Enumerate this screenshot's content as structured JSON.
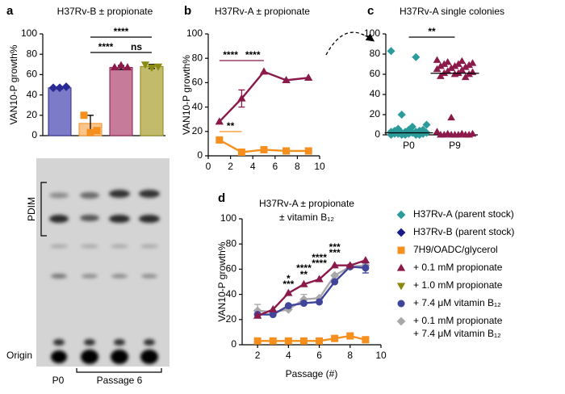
{
  "chart_data": [
    {
      "type": "bar",
      "label": "a",
      "title": "H37Rv-B ± propionate",
      "ylabel": "VAN10-P growth%",
      "ylim": [
        0,
        100
      ],
      "yticks": [
        0,
        20,
        40,
        60,
        80,
        100
      ],
      "values": [
        47,
        12,
        67,
        68
      ],
      "errors": [
        1,
        8,
        2,
        2
      ],
      "colors": [
        "#7b7bc8",
        "#f9c58c",
        "#c77b9a",
        "#c2bb6b"
      ],
      "points": [
        [
          47,
          47,
          48
        ],
        [
          20,
          3,
          5
        ],
        [
          67,
          69,
          67
        ],
        [
          70,
          67,
          68
        ]
      ],
      "point_colors": [
        "#2a2a96",
        "#f5901e",
        "#8b1a4a",
        "#8a8a10"
      ],
      "markers": [
        "diamond",
        "square",
        "triangle",
        "triangle-down"
      ],
      "annotations": [
        {
          "from": 1,
          "to": 3,
          "text": "****"
        },
        {
          "from": 1,
          "to": 2,
          "text": "****"
        },
        {
          "from": 2,
          "to": 3,
          "text": "ns"
        }
      ]
    },
    {
      "type": "line",
      "label": "b",
      "title": "H37Rv-A ± propionate",
      "ylabel": "VAN10-P growth%",
      "xlim": [
        0,
        10
      ],
      "xticks": [
        0,
        2,
        4,
        6,
        8,
        10
      ],
      "ylim": [
        0,
        100
      ],
      "yticks": [
        0,
        20,
        40,
        60,
        80,
        100
      ],
      "x": [
        1,
        3,
        5,
        7,
        9
      ],
      "series": [
        {
          "color": "#8b1a4a",
          "marker": "triangle",
          "values": [
            28,
            47,
            69,
            62,
            64
          ],
          "errors": [
            null,
            7,
            null,
            null,
            null
          ]
        },
        {
          "color": "#f5901e",
          "marker": "square",
          "values": [
            13,
            3,
            5,
            4,
            4
          ],
          "errors": [
            null,
            null,
            null,
            null,
            null
          ]
        }
      ],
      "annotations": [
        {
          "from": 1,
          "to": 3,
          "text": "****",
          "color": "#8b1a4a"
        },
        {
          "from": 3,
          "to": 5,
          "text": "****",
          "color": "#8b1a4a"
        },
        {
          "from": 1,
          "to": 3,
          "text": "**",
          "color": "#f5901e"
        }
      ]
    },
    {
      "type": "scatter",
      "label": "c",
      "title": "H37Rv-A single colonies",
      "ylim": [
        0,
        100
      ],
      "yticks": [
        0,
        20,
        40,
        60,
        80,
        100
      ],
      "categories": [
        "P0",
        "P9"
      ],
      "series": [
        {
          "color": "#2a9a9a",
          "marker": "diamond",
          "values": [
            83,
            77,
            20,
            10,
            8,
            6,
            5,
            5,
            4,
            4,
            3,
            3,
            3,
            2,
            2,
            2,
            1,
            1,
            1,
            1,
            0,
            0,
            0,
            0,
            0
          ]
        },
        {
          "color": "#8b1a4a",
          "marker": "triangle",
          "values": [
            74,
            73,
            72,
            71,
            70,
            70,
            69,
            68,
            68,
            67,
            66,
            65,
            64,
            63,
            62,
            61,
            61,
            60,
            60,
            58,
            57,
            17,
            3,
            1,
            1,
            1,
            0,
            0,
            0,
            0,
            0,
            0,
            0
          ]
        }
      ],
      "medians": [
        2,
        61
      ],
      "annotations": [
        {
          "from": 0,
          "to": 1,
          "text": "**"
        }
      ]
    },
    {
      "type": "line",
      "label": "d",
      "title": "H37Rv-A ± propionate",
      "subtitle": "± vitamin B₁₂",
      "ylabel": "VAN10-P growth%",
      "xlabel": "Passage (#)",
      "xlim": [
        1,
        10
      ],
      "xticks": [
        2,
        4,
        6,
        8,
        10
      ],
      "ylim": [
        0,
        100
      ],
      "yticks": [
        0,
        20,
        40,
        60,
        80,
        100
      ],
      "x": [
        2,
        3,
        4,
        5,
        6,
        7,
        8,
        9
      ],
      "series": [
        {
          "color": "#a8a8a8",
          "marker": "diamond",
          "values": [
            27,
            26,
            28,
            36,
            37,
            55,
            62,
            63
          ],
          "errors": [
            5,
            null,
            null,
            4,
            null,
            null,
            null,
            null
          ]
        },
        {
          "color": "#f5901e",
          "marker": "square",
          "values": [
            3,
            3,
            3,
            3,
            3,
            5,
            7,
            4
          ],
          "errors": [
            null,
            null,
            null,
            null,
            null,
            null,
            null,
            null
          ]
        },
        {
          "color": "#40459a",
          "marker": "circle",
          "values": [
            24,
            24,
            31,
            33,
            34,
            50,
            62,
            61
          ],
          "errors": [
            null,
            null,
            null,
            null,
            null,
            null,
            null,
            4
          ]
        },
        {
          "color": "#8b1a4a",
          "marker": "triangle",
          "values": [
            23,
            28,
            41,
            48,
            52,
            63,
            63,
            67
          ],
          "errors": [
            null,
            null,
            null,
            null,
            null,
            null,
            null,
            null
          ]
        }
      ],
      "annotations": [
        {
          "x": 4,
          "text": "*",
          "color": "#40459a"
        },
        {
          "x": 4,
          "text": "***",
          "color": "#a8a8a8"
        },
        {
          "x": 5,
          "text": "****",
          "color": "#40459a"
        },
        {
          "x": 5,
          "text": "**",
          "color": "#a8a8a8"
        },
        {
          "x": 6,
          "text": "****",
          "color": "#40459a"
        },
        {
          "x": 6,
          "text": "****",
          "color": "#a8a8a8"
        },
        {
          "x": 7,
          "text": "***",
          "color": "#40459a"
        },
        {
          "x": 7,
          "text": "***",
          "color": "#a8a8a8"
        }
      ]
    }
  ],
  "gel": {
    "pdim": "PDIM",
    "origin": "Origin",
    "p0": "P0",
    "passage": "Passage 6"
  },
  "legend": [
    {
      "lines": [
        "H37Rv-A (parent stock)"
      ],
      "color": "#2a9a9a",
      "marker": "diamond"
    },
    {
      "lines": [
        "H37Rv-B (parent stock)"
      ],
      "color": "#1a1a8a",
      "marker": "diamond"
    },
    {
      "lines": [
        "7H9/OADC/glycerol"
      ],
      "color": "#f5901e",
      "marker": "square"
    },
    {
      "lines": [
        "+ 0.1 mM propionate"
      ],
      "color": "#8b1a4a",
      "marker": "triangle"
    },
    {
      "lines": [
        "+ 1.0 mM propionate"
      ],
      "color": "#8a8a10",
      "marker": "triangle-down"
    },
    {
      "lines": [
        "+ 7.4 μM vitamin B₁₂"
      ],
      "color": "#40459a",
      "marker": "circle"
    },
    {
      "lines": [
        "+ 0.1 mM propionate",
        "+ 7.4 μM vitamin B₁₂"
      ],
      "color": "#a8a8a8",
      "marker": "diamond"
    }
  ]
}
